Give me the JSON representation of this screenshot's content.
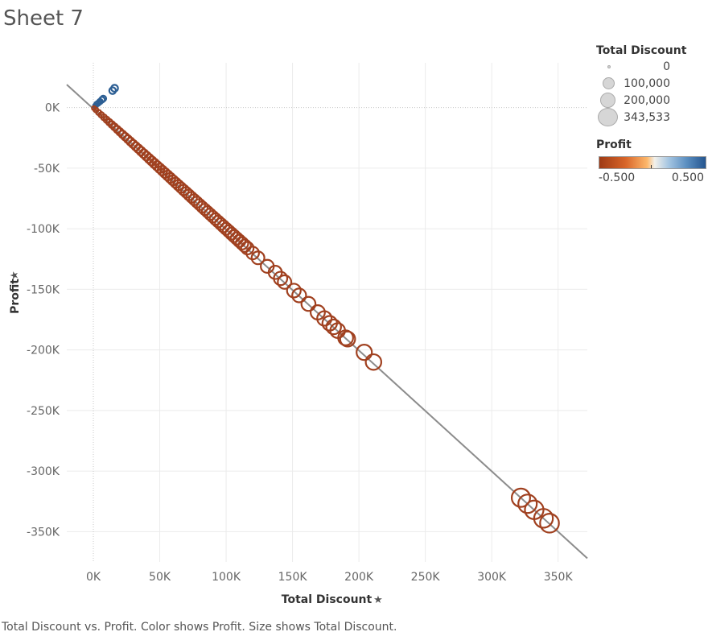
{
  "sheet_title": "Sheet 7",
  "caption": "Total Discount vs. Profit.  Color shows Profit.  Size shows Total Discount.",
  "colors": {
    "negative": "#a0401f",
    "positive": "#2d5f94",
    "trend_line": "#8c8c8c",
    "grid": "#ebebeb",
    "zero_line": "#c8c8c8"
  },
  "size_legend": {
    "title": "Total Discount",
    "items": [
      "0",
      "100,000",
      "200,000",
      "343,533"
    ]
  },
  "color_legend": {
    "title": "Profit",
    "min_label": "-0.500",
    "max_label": "0.500"
  },
  "chart_data": {
    "type": "scatter",
    "xlabel": "Total Discount",
    "ylabel": "Profit",
    "xlim": [
      -20000,
      372000
    ],
    "ylim": [
      -375000,
      37000
    ],
    "x_ticks": [
      0,
      50000,
      100000,
      150000,
      200000,
      250000,
      300000,
      350000
    ],
    "x_tick_labels": [
      "0K",
      "50K",
      "100K",
      "150K",
      "200K",
      "250K",
      "300K",
      "350K"
    ],
    "y_ticks": [
      0,
      -50000,
      -100000,
      -150000,
      -200000,
      -250000,
      -300000,
      -350000
    ],
    "y_tick_labels": [
      "0K",
      "-50K",
      "-100K",
      "-150K",
      "-200K",
      "-250K",
      "-300K",
      "-350K"
    ],
    "trend_line": {
      "from": [
        -20000,
        19000
      ],
      "to": [
        372000,
        -372000
      ]
    },
    "points": [
      {
        "x": 1500,
        "y": 1500
      },
      {
        "x": 2500,
        "y": 2800
      },
      {
        "x": 3500,
        "y": 3500
      },
      {
        "x": 5000,
        "y": 5000
      },
      {
        "x": 6500,
        "y": 6500
      },
      {
        "x": 7500,
        "y": 7500
      },
      {
        "x": 14500,
        "y": 14000
      },
      {
        "x": 16000,
        "y": 16000
      },
      {
        "x": 500,
        "y": -500
      },
      {
        "x": 2000,
        "y": -2000
      },
      {
        "x": 4000,
        "y": -4000
      },
      {
        "x": 6000,
        "y": -6000
      },
      {
        "x": 8000,
        "y": -8000
      },
      {
        "x": 10000,
        "y": -10000
      },
      {
        "x": 12000,
        "y": -12000
      },
      {
        "x": 14000,
        "y": -14000
      },
      {
        "x": 16000,
        "y": -16000
      },
      {
        "x": 18000,
        "y": -18000
      },
      {
        "x": 20000,
        "y": -20000
      },
      {
        "x": 22000,
        "y": -22000
      },
      {
        "x": 24000,
        "y": -24000
      },
      {
        "x": 26000,
        "y": -26000
      },
      {
        "x": 28000,
        "y": -28000
      },
      {
        "x": 30000,
        "y": -30000
      },
      {
        "x": 32000,
        "y": -32000
      },
      {
        "x": 34000,
        "y": -34000
      },
      {
        "x": 36000,
        "y": -36000
      },
      {
        "x": 38000,
        "y": -38000
      },
      {
        "x": 40000,
        "y": -40000
      },
      {
        "x": 42000,
        "y": -42000
      },
      {
        "x": 44000,
        "y": -44000
      },
      {
        "x": 46000,
        "y": -46000
      },
      {
        "x": 48000,
        "y": -48000
      },
      {
        "x": 50000,
        "y": -50000
      },
      {
        "x": 52000,
        "y": -52000
      },
      {
        "x": 54000,
        "y": -54000
      },
      {
        "x": 56000,
        "y": -56000
      },
      {
        "x": 58000,
        "y": -58000
      },
      {
        "x": 60000,
        "y": -60000
      },
      {
        "x": 62000,
        "y": -62000
      },
      {
        "x": 64000,
        "y": -64000
      },
      {
        "x": 66000,
        "y": -66000
      },
      {
        "x": 68000,
        "y": -68000
      },
      {
        "x": 70000,
        "y": -70000
      },
      {
        "x": 72000,
        "y": -72000
      },
      {
        "x": 74000,
        "y": -74000
      },
      {
        "x": 76000,
        "y": -76000
      },
      {
        "x": 78000,
        "y": -78000
      },
      {
        "x": 80000,
        "y": -80000
      },
      {
        "x": 82000,
        "y": -82000
      },
      {
        "x": 84000,
        "y": -84000
      },
      {
        "x": 86000,
        "y": -86000
      },
      {
        "x": 88000,
        "y": -88000
      },
      {
        "x": 90000,
        "y": -90000
      },
      {
        "x": 92000,
        "y": -92000
      },
      {
        "x": 94000,
        "y": -94000
      },
      {
        "x": 96000,
        "y": -96000
      },
      {
        "x": 98000,
        "y": -98000
      },
      {
        "x": 100000,
        "y": -100000
      },
      {
        "x": 102000,
        "y": -102000
      },
      {
        "x": 104000,
        "y": -104000
      },
      {
        "x": 106000,
        "y": -106000
      },
      {
        "x": 108000,
        "y": -108000
      },
      {
        "x": 110000,
        "y": -110000
      },
      {
        "x": 112000,
        "y": -112000
      },
      {
        "x": 114000,
        "y": -114000
      },
      {
        "x": 116000,
        "y": -116000
      },
      {
        "x": 120000,
        "y": -120000
      },
      {
        "x": 124000,
        "y": -124000
      },
      {
        "x": 131000,
        "y": -131000
      },
      {
        "x": 137000,
        "y": -136000
      },
      {
        "x": 141000,
        "y": -141000
      },
      {
        "x": 144000,
        "y": -144000
      },
      {
        "x": 151000,
        "y": -151000
      },
      {
        "x": 155000,
        "y": -155000
      },
      {
        "x": 162000,
        "y": -162000
      },
      {
        "x": 169000,
        "y": -169000
      },
      {
        "x": 174000,
        "y": -174000
      },
      {
        "x": 178000,
        "y": -178000
      },
      {
        "x": 181000,
        "y": -181000
      },
      {
        "x": 184000,
        "y": -184000
      },
      {
        "x": 190000,
        "y": -190000
      },
      {
        "x": 191500,
        "y": -191000
      },
      {
        "x": 204000,
        "y": -202000
      },
      {
        "x": 211000,
        "y": -210000
      },
      {
        "x": 322000,
        "y": -322000
      },
      {
        "x": 327000,
        "y": -327000
      },
      {
        "x": 332000,
        "y": -332000
      },
      {
        "x": 339000,
        "y": -339000
      },
      {
        "x": 343533,
        "y": -343000
      }
    ]
  }
}
